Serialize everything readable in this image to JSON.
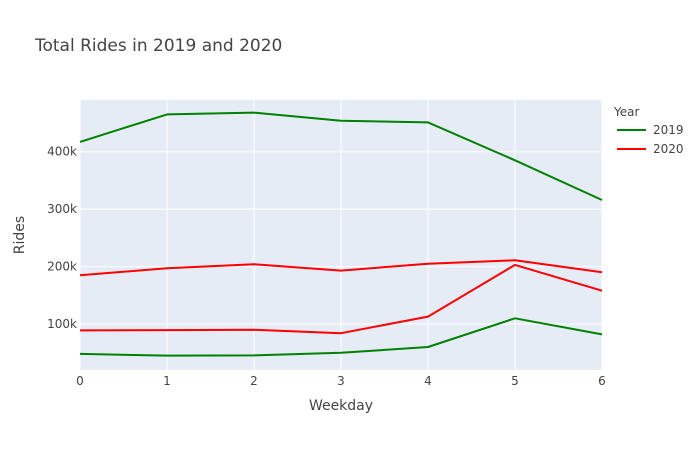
{
  "chart_data": {
    "type": "line",
    "title": "Total Rides in 2019 and 2020",
    "xlabel": "Weekday",
    "ylabel": "Rides",
    "x": [
      0,
      1,
      2,
      3,
      4,
      5,
      6
    ],
    "xlim": [
      0,
      6
    ],
    "ylim": [
      20000,
      490000
    ],
    "x_ticks": [
      "0",
      "1",
      "2",
      "3",
      "4",
      "5",
      "6"
    ],
    "y_ticks": [
      {
        "value": 100000,
        "label": "100k"
      },
      {
        "value": 200000,
        "label": "200k"
      },
      {
        "value": 300000,
        "label": "300k"
      },
      {
        "value": 400000,
        "label": "400k"
      }
    ],
    "grid": true,
    "plot_background": "#E5ECF6",
    "legend": {
      "title": "Year",
      "placement": "top-right",
      "entries": [
        {
          "name": "2019",
          "color": "#008000"
        },
        {
          "name": "2020",
          "color": "#FF0000"
        }
      ]
    },
    "series": [
      {
        "name": "2019",
        "color": "#008000",
        "values": [
          417000,
          465000,
          468000,
          454000,
          451000,
          385000,
          316000
        ]
      },
      {
        "name": "2019",
        "color": "#008000",
        "values": [
          48000,
          45000,
          45500,
          50000,
          60000,
          110000,
          82000
        ]
      },
      {
        "name": "2020",
        "color": "#FF0000",
        "values": [
          185000,
          197000,
          204000,
          193000,
          205000,
          211000,
          190000
        ]
      },
      {
        "name": "2020",
        "color": "#FF0000",
        "values": [
          89000,
          89500,
          90000,
          84000,
          113000,
          203000,
          158000
        ]
      }
    ]
  }
}
